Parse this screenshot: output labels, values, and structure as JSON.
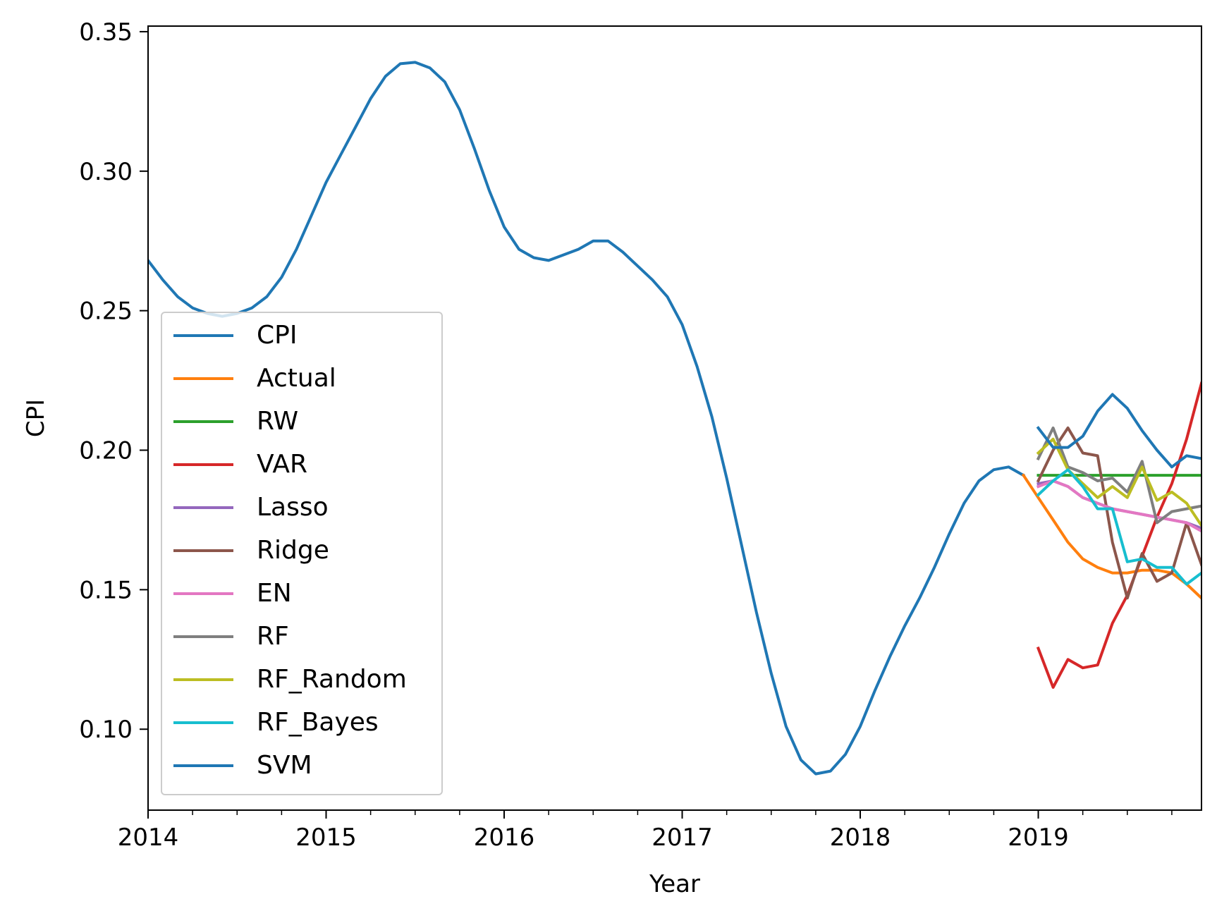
{
  "chart_data": {
    "type": "line",
    "xlabel": "Year",
    "ylabel": "CPI",
    "xlim": [
      2014.0,
      2019.9167
    ],
    "ylim": [
      0.071,
      0.352
    ],
    "x_ticks": [
      {
        "value": 2014,
        "label": "2014"
      },
      {
        "value": 2015,
        "label": "2015"
      },
      {
        "value": 2016,
        "label": "2016"
      },
      {
        "value": 2017,
        "label": "2017"
      },
      {
        "value": 2018,
        "label": "2018"
      },
      {
        "value": 2019,
        "label": "2019"
      }
    ],
    "y_ticks": [
      {
        "value": 0.1,
        "label": "0.10"
      },
      {
        "value": 0.15,
        "label": "0.15"
      },
      {
        "value": 0.2,
        "label": "0.20"
      },
      {
        "value": 0.25,
        "label": "0.25"
      },
      {
        "value": 0.3,
        "label": "0.30"
      },
      {
        "value": 0.35,
        "label": "0.35"
      }
    ],
    "grid": false,
    "legend_position": "lower-left",
    "series": [
      {
        "name": "CPI",
        "color": "#1f77b4",
        "x_start": 2014.0,
        "x_step": 0.083333,
        "values": [
          0.268,
          0.261,
          0.255,
          0.251,
          0.249,
          0.248,
          0.249,
          0.251,
          0.255,
          0.262,
          0.272,
          0.284,
          0.296,
          0.306,
          0.316,
          0.326,
          0.334,
          0.3385,
          0.339,
          0.337,
          0.332,
          0.322,
          0.308,
          0.293,
          0.28,
          0.272,
          0.269,
          0.268,
          0.27,
          0.272,
          0.275,
          0.275,
          0.271,
          0.266,
          0.261,
          0.255,
          0.245,
          0.23,
          0.212,
          0.19,
          0.166,
          0.142,
          0.12,
          0.101,
          0.089,
          0.084,
          0.085,
          0.091,
          0.101,
          0.114,
          0.126,
          0.137,
          0.147,
          0.158,
          0.17,
          0.181,
          0.189,
          0.193,
          0.194,
          0.191
        ]
      },
      {
        "name": "Actual",
        "color": "#ff7f0e",
        "x_start": 2018.9167,
        "x_step": 0.083333,
        "values": [
          0.191,
          0.183,
          0.175,
          0.167,
          0.161,
          0.158,
          0.156,
          0.156,
          0.157,
          0.157,
          0.156,
          0.152,
          0.147
        ]
      },
      {
        "name": "RW",
        "color": "#2ca02c",
        "x_start": 2019.0,
        "x_step": 0.083333,
        "values": [
          0.191,
          0.191,
          0.191,
          0.191,
          0.191,
          0.191,
          0.191,
          0.191,
          0.191,
          0.191,
          0.191,
          0.191
        ]
      },
      {
        "name": "VAR",
        "color": "#d62728",
        "x_start": 2019.0,
        "x_step": 0.083333,
        "values": [
          0.129,
          0.115,
          0.125,
          0.122,
          0.123,
          0.138,
          0.148,
          0.162,
          0.176,
          0.188,
          0.204,
          0.224
        ]
      },
      {
        "name": "Lasso",
        "color": "#9467bd",
        "x_start": 2019.0,
        "x_step": 0.083333,
        "values": [
          0.188,
          0.189,
          0.187,
          0.183,
          0.181,
          0.179,
          0.178,
          0.177,
          0.176,
          0.175,
          0.174,
          0.172
        ]
      },
      {
        "name": "Ridge",
        "color": "#8c564b",
        "x_start": 2019.0,
        "x_step": 0.083333,
        "values": [
          0.189,
          0.2,
          0.208,
          0.199,
          0.198,
          0.167,
          0.147,
          0.163,
          0.153,
          0.156,
          0.174,
          0.159
        ]
      },
      {
        "name": "EN",
        "color": "#e377c2",
        "x_start": 2019.0,
        "x_step": 0.083333,
        "values": [
          0.187,
          0.189,
          0.187,
          0.183,
          0.181,
          0.179,
          0.178,
          0.177,
          0.176,
          0.175,
          0.174,
          0.171
        ]
      },
      {
        "name": "RF",
        "color": "#7f7f7f",
        "x_start": 2019.0,
        "x_step": 0.083333,
        "values": [
          0.197,
          0.208,
          0.194,
          0.192,
          0.189,
          0.19,
          0.185,
          0.196,
          0.174,
          0.178,
          0.179,
          0.18
        ]
      },
      {
        "name": "RF_Random",
        "color": "#bcbd22",
        "x_start": 2019.0,
        "x_step": 0.083333,
        "values": [
          0.199,
          0.204,
          0.193,
          0.188,
          0.183,
          0.187,
          0.183,
          0.194,
          0.182,
          0.185,
          0.181,
          0.173
        ]
      },
      {
        "name": "RF_Bayes",
        "color": "#17becf",
        "x_start": 2019.0,
        "x_step": 0.083333,
        "values": [
          0.184,
          0.189,
          0.193,
          0.187,
          0.179,
          0.179,
          0.16,
          0.161,
          0.158,
          0.158,
          0.152,
          0.156
        ]
      },
      {
        "name": "SVM",
        "color": "#1f77b4",
        "x_start": 2019.0,
        "x_step": 0.083333,
        "values": [
          0.208,
          0.201,
          0.201,
          0.205,
          0.214,
          0.22,
          0.215,
          0.207,
          0.2,
          0.194,
          0.198,
          0.197
        ]
      }
    ]
  }
}
